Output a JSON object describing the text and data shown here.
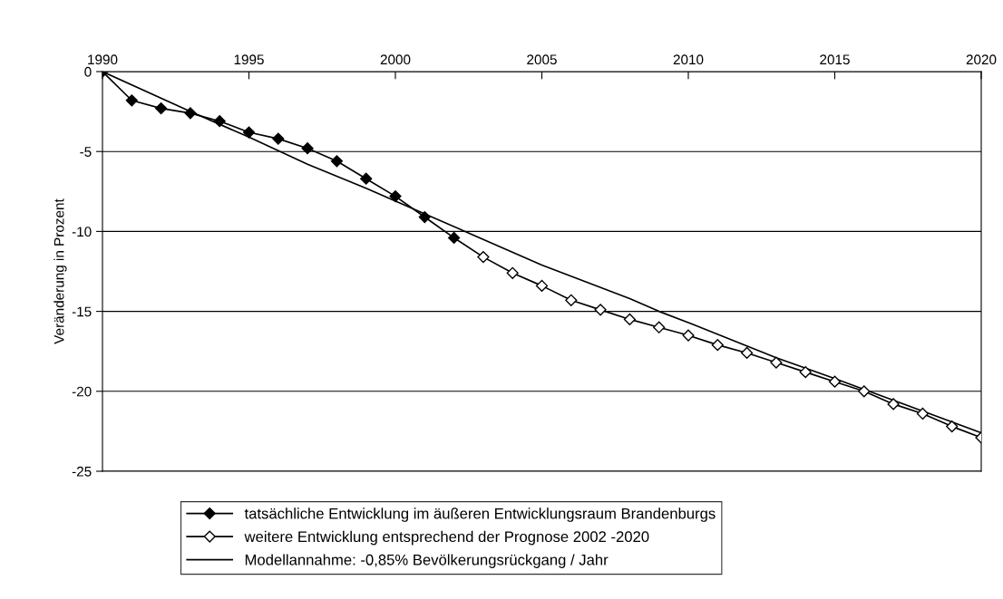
{
  "chart_data": {
    "type": "line",
    "ylabel": "Veränderung in Prozent",
    "xlim": [
      1990,
      2020
    ],
    "xticks": [
      1990,
      1995,
      2000,
      2005,
      2010,
      2015,
      2020
    ],
    "ylim": [
      -25,
      0
    ],
    "yticks": [
      -25,
      -20,
      -15,
      -10,
      -5,
      0
    ],
    "grid": "y",
    "legend": "bottom",
    "series": [
      {
        "name": "tatsächliche Entwicklung im äußeren Entwicklungsraum Brandenburgs",
        "color": "#000000",
        "marker": "diamond",
        "x": [
          1990,
          1991,
          1992,
          1993,
          1994,
          1995,
          1996,
          1997,
          1998,
          1999,
          2000,
          2001,
          2002
        ],
        "values": [
          0,
          -1.8,
          -2.3,
          -2.6,
          -3.1,
          -3.8,
          -4.2,
          -4.8,
          -5.6,
          -6.7,
          -7.8,
          -9.1,
          -10.4
        ]
      },
      {
        "name": "weitere Entwicklung entsprechend der Prognose 2002 -2020",
        "color": "#000000",
        "marker": "diamond",
        "colors": [
          "#ffffff",
          "#ffffff",
          "#ffffff",
          "#ffffff",
          "#ffffff",
          "#ffffff",
          "#ffffff",
          "#ffffff",
          "#ffffff",
          "#ffffff",
          "#ffffff",
          "#ffffff",
          "#ffffff",
          "#ffffff",
          "#ffffff",
          "#ffffff",
          "#ffffff",
          "#ffffff",
          "#ffffff"
        ],
        "x": [
          2002,
          2003,
          2004,
          2005,
          2006,
          2007,
          2008,
          2009,
          2010,
          2011,
          2012,
          2013,
          2014,
          2015,
          2016,
          2017,
          2018,
          2019,
          2020
        ],
        "values": [
          -10.4,
          -11.6,
          -12.6,
          -13.4,
          -14.3,
          -14.9,
          -15.5,
          -16.0,
          -16.5,
          -17.1,
          -17.6,
          -18.2,
          -18.8,
          -19.4,
          -20.0,
          -20.8,
          -21.4,
          -22.2,
          -22.9
        ]
      },
      {
        "name": "Modellannahme: -0,85% Bevölkerungsrückgang / Jahr",
        "color": "#000000",
        "marker": "none",
        "x": [
          1990,
          1993,
          1995,
          1997,
          1999,
          2001,
          2003,
          2005,
          2008,
          2009,
          2010,
          2013,
          2015,
          2020
        ],
        "values": [
          0,
          -2.5,
          -4.1,
          -5.8,
          -7.3,
          -8.9,
          -10.5,
          -12.1,
          -14.2,
          -15.0,
          -15.7,
          -17.9,
          -19.2,
          -22.6
        ]
      }
    ]
  }
}
